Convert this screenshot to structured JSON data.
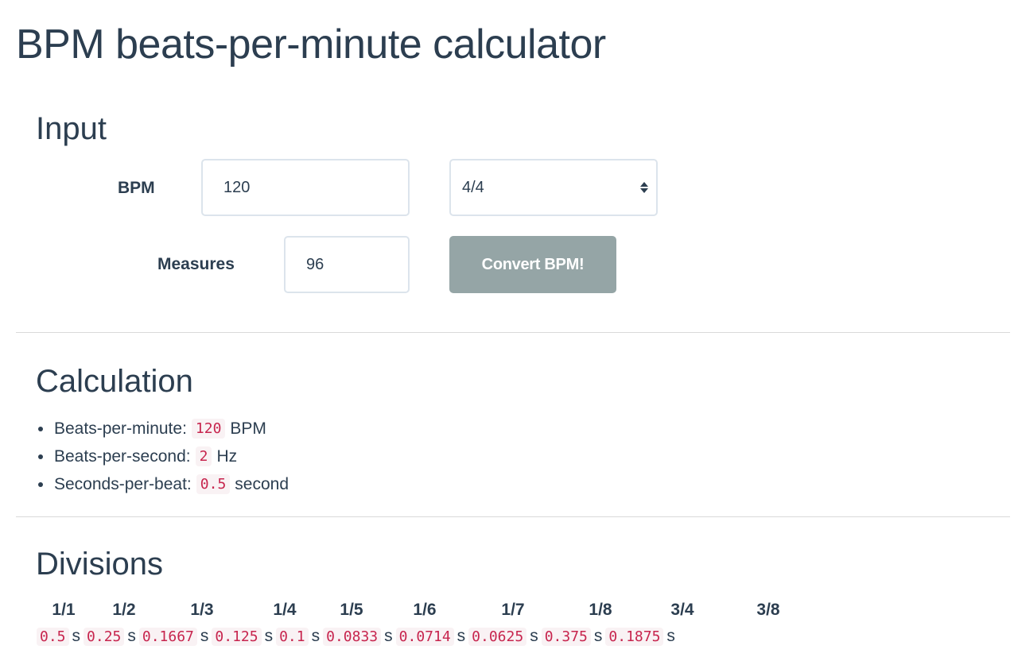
{
  "page": {
    "title": "BPM beats-per-minute calculator"
  },
  "input_section": {
    "heading": "Input",
    "bpm_label": "BPM",
    "bpm_value": "120",
    "time_signature": "4/4",
    "measures_label": "Measures",
    "measures_value": "96",
    "convert_button": "Convert BPM!"
  },
  "calculation_section": {
    "heading": "Calculation",
    "items": [
      {
        "label": "Beats-per-minute:",
        "value": "120",
        "unit": "BPM"
      },
      {
        "label": "Beats-per-second:",
        "value": "2",
        "unit": "Hz"
      },
      {
        "label": "Seconds-per-beat:",
        "value": "0.5",
        "unit": "second"
      }
    ]
  },
  "divisions_section": {
    "heading": "Divisions",
    "divisions": [
      {
        "label": "1/1",
        "value": "0.5",
        "unit": "s"
      },
      {
        "label": "1/2",
        "value": "0.25",
        "unit": "s"
      },
      {
        "label": "1/3",
        "value": "0.1667",
        "unit": "s"
      },
      {
        "label": "1/4",
        "value": "0.125",
        "unit": "s"
      },
      {
        "label": "1/5",
        "value": "0.1",
        "unit": "s"
      },
      {
        "label": "1/6",
        "value": "0.0833",
        "unit": "s"
      },
      {
        "label": "1/7",
        "value": "0.0714",
        "unit": "s"
      },
      {
        "label": "1/8",
        "value": "0.0625",
        "unit": "s"
      },
      {
        "label": "3/4",
        "value": "0.375",
        "unit": "s"
      },
      {
        "label": "3/8",
        "value": "0.1875",
        "unit": "s"
      }
    ]
  },
  "colors": {
    "text": "#2c3e50",
    "button_bg": "#95a5a6",
    "code_text": "#c7254e",
    "code_bg": "#f9f2f4",
    "input_border": "#dce4ec"
  }
}
